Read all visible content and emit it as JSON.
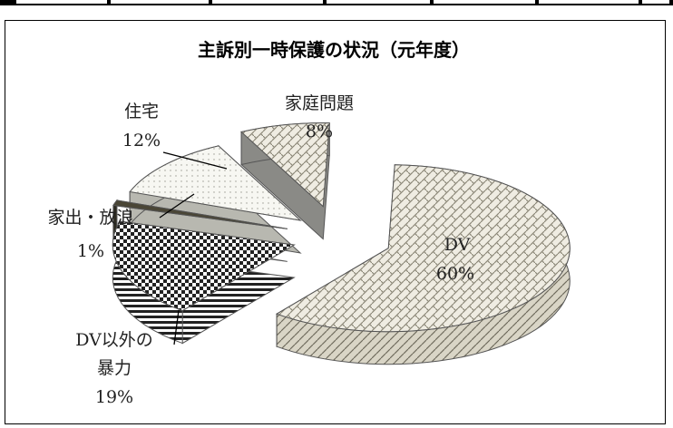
{
  "chart_data": {
    "type": "pie",
    "style": "3d-exploded",
    "title": "主訴別一時保護の状況（元年度）",
    "categories": [
      "DV",
      "DV以外の暴力",
      "家出・放浪",
      "住宅",
      "家庭問題"
    ],
    "values": [
      60,
      19,
      1,
      12,
      8
    ],
    "unit": "%",
    "labels": [
      {
        "name": "DV",
        "pct": "60%"
      },
      {
        "name": "DV以外の暴力",
        "name_lines": [
          "DV以外の",
          "暴力"
        ],
        "pct": "19%"
      },
      {
        "name": "家出・放浪",
        "pct": "1%"
      },
      {
        "name": "住宅",
        "pct": "12%"
      },
      {
        "name": "家庭問題",
        "pct": "8%"
      }
    ],
    "legend": "none"
  }
}
